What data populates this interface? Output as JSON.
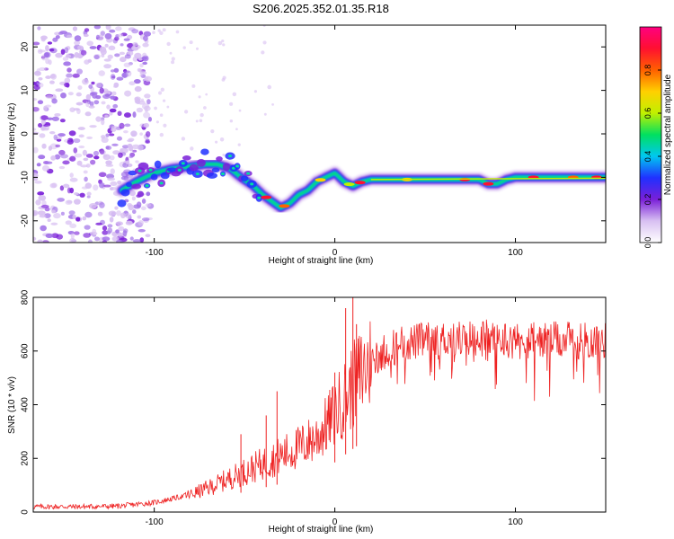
{
  "chart_data": [
    {
      "type": "heatmap",
      "title": "S206.2025.352.01.35.R18",
      "xlabel": "Height of straight line (km)",
      "ylabel": "Frequency (Hz)",
      "xlim": [
        -167,
        150
      ],
      "ylim": [
        -25,
        25
      ],
      "xticks": [
        -100,
        0,
        100
      ],
      "yticks": [
        -20,
        -10,
        0,
        10,
        20
      ],
      "colorbar": {
        "label": "Normalized spectral amplitude",
        "range": [
          0,
          1
        ],
        "ticks": [
          "0.0",
          "0.2",
          "0.4",
          "0.6",
          "0.8"
        ],
        "colors": [
          "#ffffff",
          "#d8c0f2",
          "#7a1fd8",
          "#2030ff",
          "#00c8f0",
          "#00e060",
          "#c0f000",
          "#ffd000",
          "#ff6000",
          "#ff1030",
          "#ff0080"
        ]
      },
      "ridge": {
        "x": [
          -118,
          -110,
          -100,
          -90,
          -80,
          -72,
          -65,
          -58,
          -52,
          -45,
          -40,
          -35,
          -30,
          -25,
          -20,
          -15,
          -10,
          -5,
          0,
          5,
          10,
          15,
          20,
          30,
          40,
          50,
          60,
          70,
          80,
          85,
          90,
          95,
          100,
          110,
          120,
          130,
          140,
          150
        ],
        "y": [
          -13,
          -11,
          -9,
          -8,
          -7.5,
          -7,
          -7,
          -8,
          -10,
          -12,
          -14,
          -15.5,
          -17,
          -16,
          -14,
          -13,
          -11,
          -10,
          -9,
          -11,
          -12,
          -11,
          -10.5,
          -10.5,
          -10.5,
          -10.5,
          -10.5,
          -10.5,
          -10.5,
          -11.5,
          -11.5,
          -10.5,
          -10,
          -10,
          -10,
          -10,
          -10,
          -10
        ]
      },
      "noise_x_max": -110
    },
    {
      "type": "line",
      "xlabel": "Height of straight line (km)",
      "ylabel": "SNR (10 * v/v)",
      "xlim": [
        -167,
        150
      ],
      "ylim": [
        0,
        800
      ],
      "xticks": [
        -100,
        0,
        100
      ],
      "yticks": [
        0,
        200,
        400,
        600,
        800
      ],
      "series": [
        {
          "name": "SNR",
          "color": "#ee2222",
          "trend_x": [
            -167,
            -140,
            -120,
            -100,
            -90,
            -80,
            -70,
            -60,
            -50,
            -40,
            -30,
            -20,
            -10,
            -5,
            0,
            5,
            10,
            15,
            20,
            25,
            30,
            40,
            50,
            60,
            80,
            100,
            120,
            140,
            150
          ],
          "trend_y": [
            20,
            20,
            22,
            35,
            50,
            65,
            90,
            120,
            150,
            180,
            210,
            240,
            280,
            320,
            370,
            420,
            470,
            520,
            560,
            590,
            610,
            630,
            640,
            645,
            650,
            640,
            640,
            640,
            640
          ],
          "spikes": [
            {
              "x": 10,
              "y": 810
            },
            {
              "x": 6,
              "y": 760
            },
            {
              "x": 12,
              "y": 700
            },
            {
              "x": 0,
              "y": 520
            },
            {
              "x": -32,
              "y": 450
            },
            {
              "x": -52,
              "y": 290
            },
            {
              "x": -38,
              "y": 360
            }
          ]
        }
      ]
    }
  ]
}
